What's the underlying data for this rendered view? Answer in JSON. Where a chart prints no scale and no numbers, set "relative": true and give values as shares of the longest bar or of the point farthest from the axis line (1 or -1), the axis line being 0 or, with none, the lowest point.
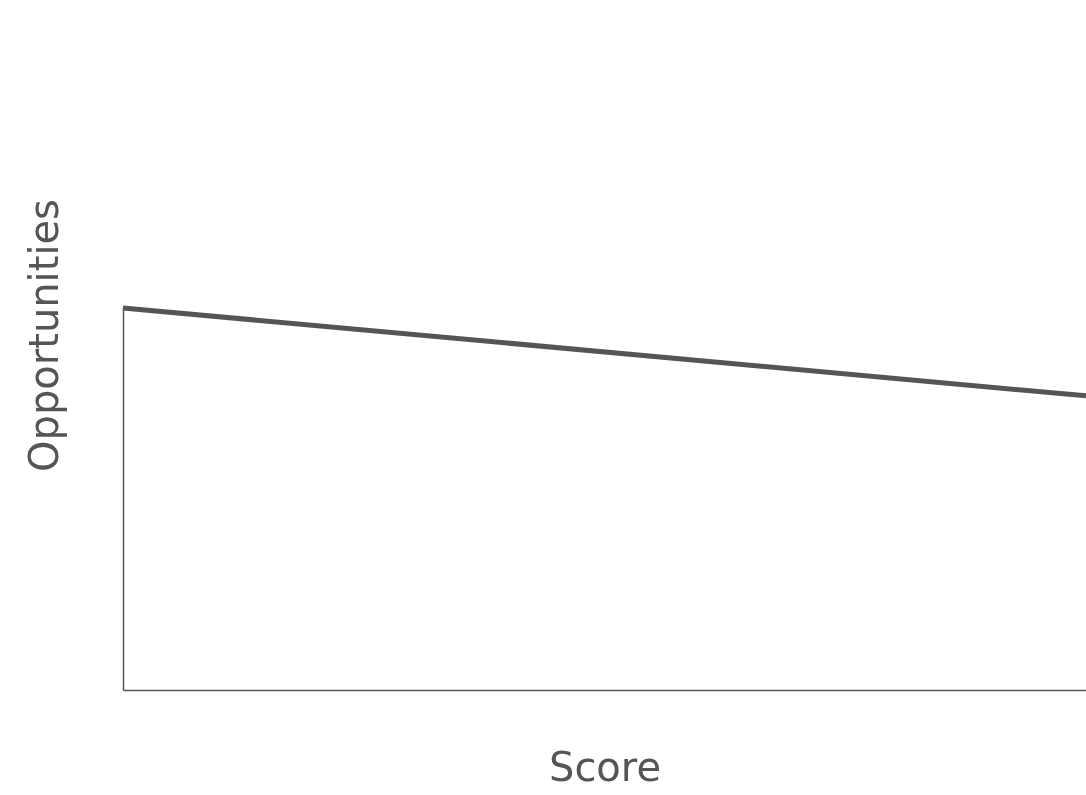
{
  "chart_data": {
    "type": "line",
    "xlabel": "Score",
    "ylabel": "Opportunities",
    "relative": true,
    "categories": [
      null,
      null
    ],
    "series": [
      {
        "color": "#555555",
        "values": [
          1,
          0.77
        ]
      }
    ],
    "grid": false,
    "marker": "none",
    "line_style": "solid"
  }
}
